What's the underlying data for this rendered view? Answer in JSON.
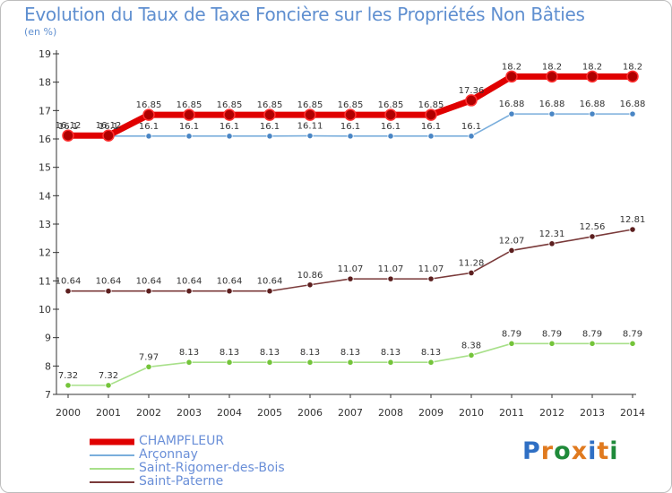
{
  "title": "Evolution du Taux de Taxe Foncière sur les Propriétés Non Bâties",
  "subtitle": "(en %)",
  "logo": {
    "letters": [
      "P",
      "r",
      "o",
      "x",
      "i",
      "t",
      "i"
    ],
    "colors": [
      "#2f6fc4",
      "#e07a1f",
      "#1f8a3a",
      "#e07a1f",
      "#2f6fc4",
      "#e07a1f",
      "#1f8a3a"
    ]
  },
  "chart_data": {
    "type": "line",
    "title": "Evolution du Taux de Taxe Foncière sur les Propriétés Non Bâties",
    "ylabel": "(en %)",
    "xlabel": "",
    "ylim": [
      7,
      19
    ],
    "yticks": [
      "7",
      "8",
      "9",
      "10",
      "11",
      "12",
      "13",
      "14",
      "15",
      "16",
      "17",
      "18",
      "19"
    ],
    "x": [
      "2000",
      "2001",
      "2002",
      "2003",
      "2004",
      "2005",
      "2006",
      "2007",
      "2008",
      "2009",
      "2010",
      "2011",
      "2012",
      "2013",
      "2014"
    ],
    "series": [
      {
        "name": "CHAMPFLEUR",
        "color": "#e00000",
        "marker": "#b00000",
        "bold": true,
        "values": [
          16.12,
          16.12,
          16.85,
          16.85,
          16.85,
          16.85,
          16.85,
          16.85,
          16.85,
          16.85,
          17.36,
          18.2,
          18.2,
          18.2,
          18.2
        ],
        "labels": [
          "16.12",
          "16.12",
          "16.85",
          "16.85",
          "16.85",
          "16.85",
          "16.85",
          "16.85",
          "16.85",
          "16.85",
          "17.36",
          "18.2",
          "18.2",
          "18.2",
          "18.2"
        ]
      },
      {
        "name": "Arçonnay",
        "color": "#7aaedc",
        "marker": "#4a86c5",
        "bold": false,
        "values": [
          16.1,
          16.1,
          16.1,
          16.1,
          16.1,
          16.1,
          16.11,
          16.1,
          16.1,
          16.1,
          16.1,
          16.88,
          16.88,
          16.88,
          16.88
        ],
        "labels": [
          "16.1",
          "16.1",
          "16.1",
          "16.1",
          "16.1",
          "16.1",
          "16.11",
          "16.1",
          "16.1",
          "16.1",
          "16.1",
          "16.88",
          "16.88",
          "16.88",
          "16.88"
        ]
      },
      {
        "name": "Saint-Rigomer-des-Bois",
        "color": "#a8e08a",
        "marker": "#74c43a",
        "bold": false,
        "values": [
          7.32,
          7.32,
          7.97,
          8.13,
          8.13,
          8.13,
          8.13,
          8.13,
          8.13,
          8.13,
          8.38,
          8.79,
          8.79,
          8.79,
          8.79
        ],
        "labels": [
          "7.32",
          "7.32",
          "7.97",
          "8.13",
          "8.13",
          "8.13",
          "8.13",
          "8.13",
          "8.13",
          "8.13",
          "8.38",
          "8.79",
          "8.79",
          "8.79",
          "8.79"
        ]
      },
      {
        "name": "Saint-Paterne",
        "color": "#7a3a3a",
        "marker": "#5c1f1f",
        "bold": false,
        "values": [
          10.64,
          10.64,
          10.64,
          10.64,
          10.64,
          10.64,
          10.86,
          11.07,
          11.07,
          11.07,
          11.28,
          12.07,
          12.31,
          12.56,
          12.81
        ],
        "labels": [
          "10.64",
          "10.64",
          "10.64",
          "10.64",
          "10.64",
          "10.64",
          "10.86",
          "11.07",
          "11.07",
          "11.07",
          "11.28",
          "12.07",
          "12.31",
          "12.56",
          "12.81"
        ]
      }
    ],
    "legend": [
      "CHAMPFLEUR",
      "Arçonnay",
      "Saint-Rigomer-des-Bois",
      "Saint-Paterne"
    ],
    "legend_position": "bottom-left",
    "grid": false
  }
}
